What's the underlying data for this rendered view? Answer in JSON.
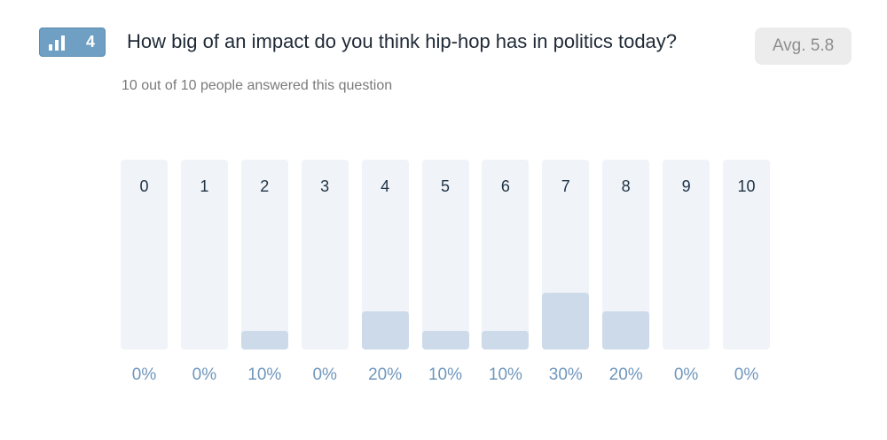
{
  "question": {
    "number": "4",
    "text": "How big of an impact do you think hip-hop has in politics today?",
    "average": "Avg. 5.8",
    "answered": "10 out of 10 people answered this question",
    "icon": "bar-chart-icon"
  },
  "colors": {
    "badge": "#6f9fc2",
    "bar_bg": "#f0f3f8",
    "bar_fill": "#ccdaea",
    "percent_text": "#6f97bd"
  },
  "chart_data": {
    "type": "bar",
    "categories": [
      "0",
      "1",
      "2",
      "3",
      "4",
      "5",
      "6",
      "7",
      "8",
      "9",
      "10"
    ],
    "values": [
      0,
      0,
      10,
      0,
      20,
      10,
      10,
      30,
      20,
      0,
      0
    ],
    "value_labels": [
      "0%",
      "0%",
      "10%",
      "0%",
      "20%",
      "10%",
      "10%",
      "30%",
      "20%",
      "0%",
      "0%"
    ],
    "ylim": [
      0,
      100
    ]
  }
}
